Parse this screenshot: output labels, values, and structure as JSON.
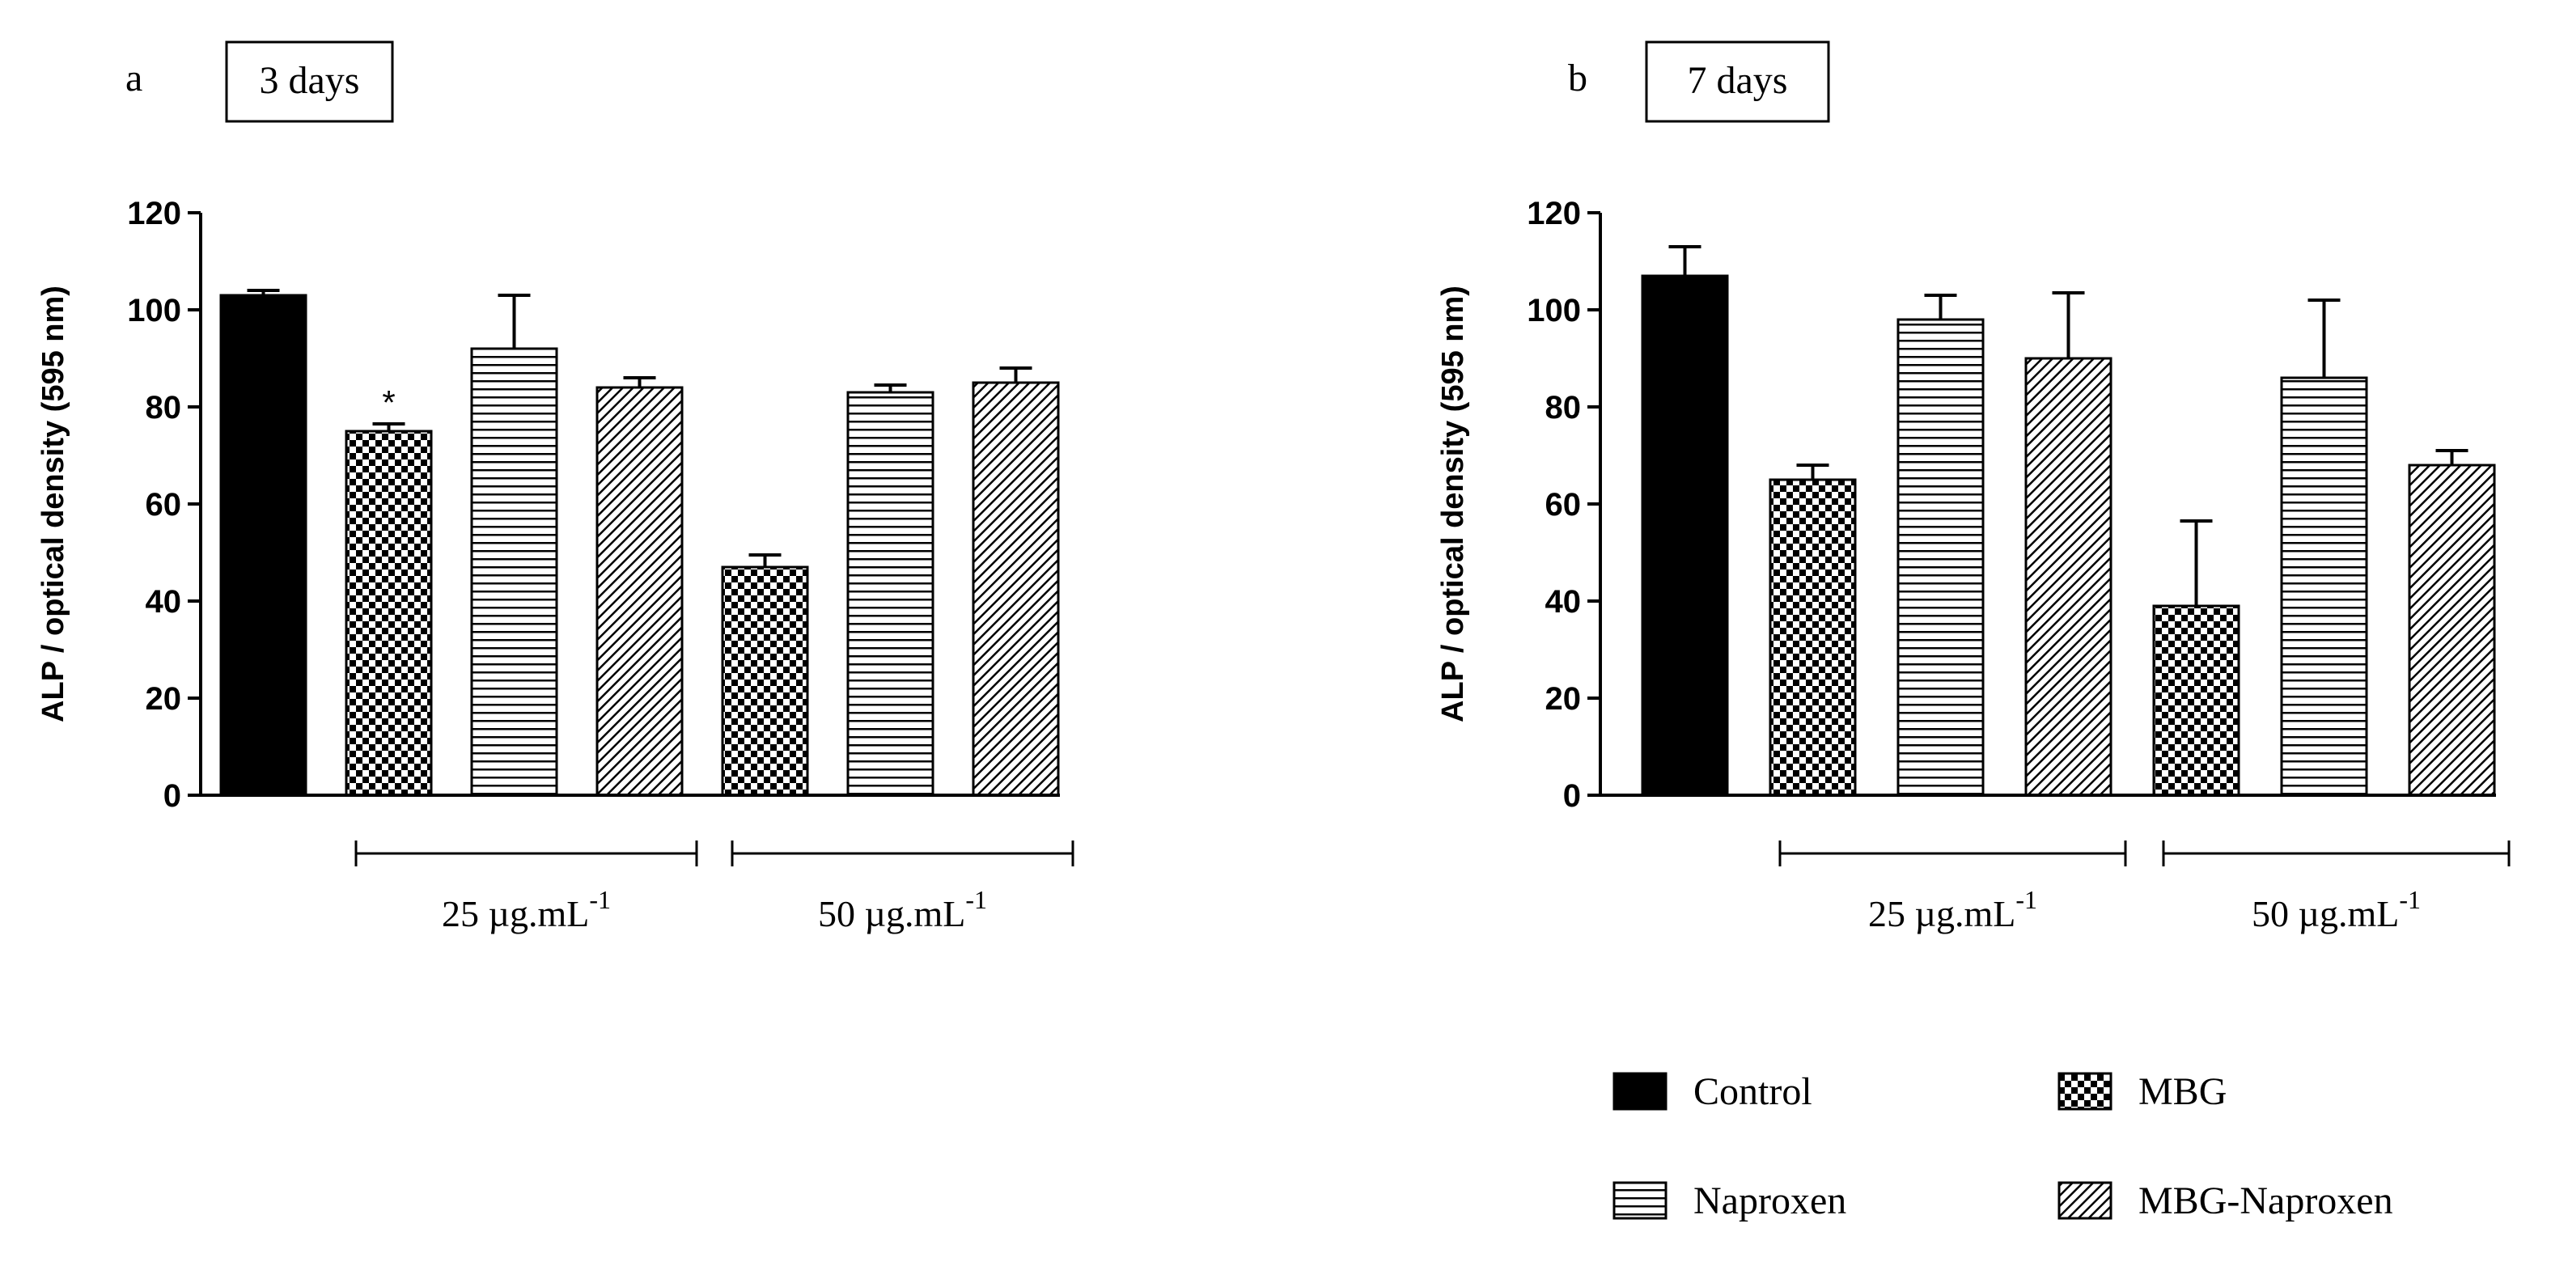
{
  "figure": {
    "legend_title_hidden": "",
    "colors": {
      "ink": "#000000",
      "background": "#ffffff"
    }
  },
  "legend": [
    {
      "name": "Control",
      "pattern": "solid"
    },
    {
      "name": "MBG",
      "pattern": "checker"
    },
    {
      "name": "Naproxen",
      "pattern": "hlines"
    },
    {
      "name": "MBG-Naproxen",
      "pattern": "diag"
    }
  ],
  "chart_data": [
    {
      "type": "bar",
      "panel_letter": "a",
      "title": "3 days",
      "ylabel": "ALP / optical density (595 nm)",
      "ylim": [
        0,
        120
      ],
      "yticks": [
        "0",
        "20",
        "40",
        "60",
        "80",
        "100",
        "120"
      ],
      "groups": [
        {
          "label": "25 µg.mL",
          "sup": "-1",
          "bars": [
            1,
            2,
            3
          ]
        },
        {
          "label": "50 µg.mL",
          "sup": "-1",
          "bars": [
            4,
            5,
            6
          ]
        }
      ],
      "bars": [
        {
          "series": "Control",
          "value": 103,
          "error": 1,
          "annotation": ""
        },
        {
          "series": "MBG",
          "value": 75,
          "error": 1.5,
          "annotation": "*"
        },
        {
          "series": "Naproxen",
          "value": 92,
          "error": 11,
          "annotation": ""
        },
        {
          "series": "MBG-Naproxen",
          "value": 84,
          "error": 2,
          "annotation": ""
        },
        {
          "series": "MBG",
          "value": 47,
          "error": 2.5,
          "annotation": ""
        },
        {
          "series": "Naproxen",
          "value": 83,
          "error": 1.5,
          "annotation": ""
        },
        {
          "series": "MBG-Naproxen",
          "value": 85,
          "error": 3,
          "annotation": ""
        }
      ]
    },
    {
      "type": "bar",
      "panel_letter": "b",
      "title": "7 days",
      "ylabel": "ALP / optical density (595 nm)",
      "ylim": [
        0,
        120
      ],
      "yticks": [
        "0",
        "20",
        "40",
        "60",
        "80",
        "100",
        "120"
      ],
      "groups": [
        {
          "label": "25 µg.mL",
          "sup": "-1",
          "bars": [
            1,
            2,
            3
          ]
        },
        {
          "label": "50 µg.mL",
          "sup": "-1",
          "bars": [
            4,
            5,
            6
          ]
        }
      ],
      "bars": [
        {
          "series": "Control",
          "value": 107,
          "error": 6,
          "annotation": ""
        },
        {
          "series": "MBG",
          "value": 65,
          "error": 3,
          "annotation": ""
        },
        {
          "series": "Naproxen",
          "value": 98,
          "error": 5,
          "annotation": ""
        },
        {
          "series": "MBG-Naproxen",
          "value": 90,
          "error": 13.5,
          "annotation": ""
        },
        {
          "series": "MBG",
          "value": 39,
          "error": 17.5,
          "annotation": ""
        },
        {
          "series": "Naproxen",
          "value": 86,
          "error": 16,
          "annotation": ""
        },
        {
          "series": "MBG-Naproxen",
          "value": 68,
          "error": 3,
          "annotation": ""
        }
      ]
    }
  ]
}
